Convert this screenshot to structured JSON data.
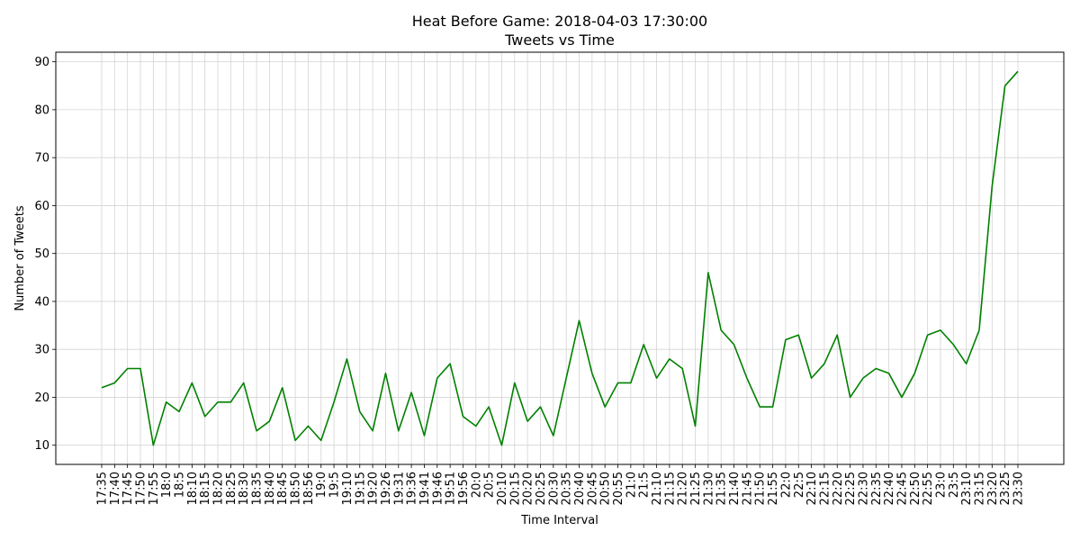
{
  "chart_data": {
    "type": "line",
    "title": "Heat Before Game: 2018-04-03 17:30:00",
    "subtitle": "Tweets vs Time",
    "xlabel": "Time Interval",
    "ylabel": "Number of Tweets",
    "ylim": [
      6,
      92
    ],
    "yticks": [
      10,
      20,
      30,
      40,
      50,
      60,
      70,
      80,
      90
    ],
    "grid": true,
    "line_color": "#008000",
    "categories": [
      "17:35",
      "17:40",
      "17:45",
      "17:50",
      "17:55",
      "18:0",
      "18:5",
      "18:10",
      "18:15",
      "18:20",
      "18:25",
      "18:30",
      "18:35",
      "18:40",
      "18:45",
      "18:50",
      "18:56",
      "19:0",
      "19:5",
      "19:10",
      "19:15",
      "19:20",
      "19:26",
      "19:31",
      "19:36",
      "19:41",
      "19:46",
      "19:51",
      "19:56",
      "20:0",
      "20:5",
      "20:10",
      "20:15",
      "20:20",
      "20:25",
      "20:30",
      "20:35",
      "20:40",
      "20:45",
      "20:50",
      "20:55",
      "21:0",
      "21:5",
      "21:10",
      "21:15",
      "21:20",
      "21:25",
      "21:30",
      "21:35",
      "21:40",
      "21:45",
      "21:50",
      "21:55",
      "22:0",
      "22:5",
      "22:10",
      "22:15",
      "22:20",
      "22:25",
      "22:30",
      "22:35",
      "22:40",
      "22:45",
      "22:50",
      "22:55",
      "23:0",
      "23:5",
      "23:10",
      "23:15",
      "23:20",
      "23:25",
      "23:30"
    ],
    "series": [
      {
        "values": [
          22,
          23,
          26,
          26,
          10,
          19,
          17,
          23,
          16,
          19,
          19,
          23,
          13,
          15,
          22,
          11,
          14,
          11,
          19,
          28,
          17,
          13,
          25,
          13,
          21,
          12,
          24,
          27,
          16,
          14,
          18,
          10,
          23,
          15,
          18,
          12,
          24,
          36,
          25,
          18,
          23,
          23,
          31,
          24,
          28,
          26,
          14,
          46,
          34,
          31,
          24,
          18,
          18,
          32,
          33,
          24,
          27,
          33,
          20,
          24,
          26,
          25,
          20,
          25,
          33,
          34,
          31,
          27,
          34,
          64,
          85,
          88
        ]
      }
    ]
  }
}
